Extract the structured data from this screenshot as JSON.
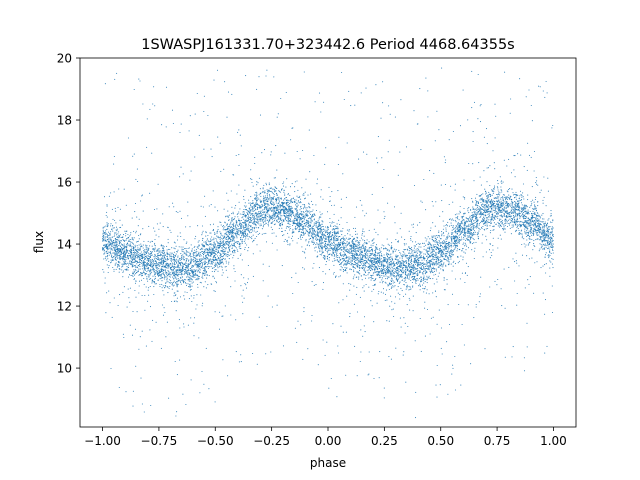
{
  "chart_data": {
    "type": "scatter",
    "title": "1SWASPJ161331.70+323442.6 Period 4468.64355s",
    "xlabel": "phase",
    "ylabel": "flux",
    "xlim": [
      -1.1,
      1.1
    ],
    "ylim": [
      8.1,
      20.0
    ],
    "xticks": [
      -1.0,
      -0.75,
      -0.5,
      -0.25,
      0.0,
      0.25,
      0.5,
      0.75,
      1.0
    ],
    "xtick_labels": [
      "−1.00",
      "−0.75",
      "−0.50",
      "−0.25",
      "0.00",
      "0.25",
      "0.50",
      "0.75",
      "1.00"
    ],
    "yticks": [
      10,
      12,
      14,
      16,
      18,
      20
    ],
    "ytick_labels": [
      "10",
      "12",
      "14",
      "16",
      "18",
      "20"
    ],
    "grid": false,
    "marker_color": "#1f77b4",
    "series": [
      {
        "phase": [
          -1.0,
          -0.9,
          -0.8,
          -0.7,
          -0.6,
          -0.5,
          -0.4,
          -0.3,
          -0.25,
          -0.2,
          -0.1,
          0.0,
          0.1,
          0.2,
          0.3,
          0.4,
          0.5,
          0.6,
          0.7,
          0.75,
          0.8,
          0.9,
          1.0
        ],
        "flux_trend": [
          14.1,
          13.7,
          13.4,
          13.25,
          13.3,
          13.7,
          14.4,
          15.1,
          15.2,
          15.1,
          14.7,
          14.1,
          13.7,
          13.4,
          13.25,
          13.3,
          13.7,
          14.4,
          15.1,
          15.2,
          15.1,
          14.7,
          14.1
        ]
      }
    ]
  }
}
